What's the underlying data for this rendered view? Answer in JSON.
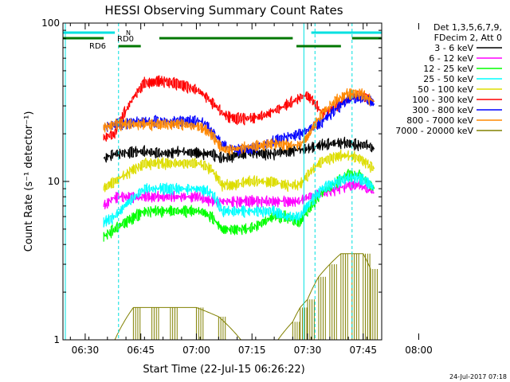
{
  "chart_data": {
    "type": "line",
    "title": "HESSI Observing Summary Count Rates",
    "xlabel": "Start Time (22-Jul-15 06:26:22)",
    "ylabel": "Count Rate (s⁻¹ detector⁻¹)",
    "yscale": "log",
    "ylim": [
      1,
      100
    ],
    "xlim_min": [
      -2,
      84
    ],
    "x_ticks": [
      "06:30",
      "06:45",
      "07:00",
      "07:15",
      "07:30",
      "07:45",
      "08:00"
    ],
    "x_tick_values": [
      4,
      19,
      34,
      49,
      64,
      79,
      94
    ],
    "y_ticks": [
      "1",
      "10",
      "100"
    ],
    "legend_header": [
      "Det 1,3,5,6,7,9,",
      "FDecim 2, Att 0"
    ],
    "legend_position": "right",
    "series": [
      {
        "name": "3 - 6 keV",
        "color": "#000000",
        "x": [
          9,
          12,
          20,
          25,
          30,
          35,
          38,
          41,
          44,
          48,
          52,
          55,
          58,
          62,
          64,
          68,
          72,
          75,
          78,
          80,
          82
        ],
        "y": [
          14,
          15,
          15.5,
          15,
          15.5,
          15,
          15,
          14,
          14.5,
          15.5,
          15,
          15,
          15.5,
          16,
          16,
          17,
          17.5,
          17.5,
          17,
          17,
          16
        ]
      },
      {
        "name": "6 - 12 keV",
        "color": "#ff00ff",
        "x": [
          9,
          12,
          20,
          25,
          30,
          35,
          38,
          41,
          44,
          48,
          52,
          55,
          58,
          62,
          64,
          68,
          72,
          75,
          78,
          80,
          82
        ],
        "y": [
          7,
          8,
          8,
          8,
          8,
          8,
          7.5,
          7.5,
          7.5,
          7.5,
          7.5,
          7.5,
          7.5,
          7.5,
          8,
          8.5,
          9,
          9.5,
          9.5,
          9,
          8.5
        ]
      },
      {
        "name": "12 - 25 keV",
        "color": "#00ff00",
        "x": [
          9,
          12,
          20,
          25,
          30,
          35,
          38,
          41,
          44,
          48,
          52,
          55,
          58,
          62,
          64,
          68,
          72,
          75,
          78,
          80,
          82
        ],
        "y": [
          4.5,
          5,
          6.5,
          6.5,
          6.5,
          6.5,
          6,
          5,
          5,
          5,
          5.5,
          6,
          6,
          5.5,
          6.5,
          8.5,
          10,
          11,
          11,
          10,
          9
        ]
      },
      {
        "name": "25 - 50 keV",
        "color": "#00ffff",
        "x": [
          9,
          12,
          20,
          25,
          30,
          35,
          38,
          41,
          44,
          48,
          52,
          55,
          58,
          62,
          64,
          68,
          72,
          75,
          78,
          80,
          82
        ],
        "y": [
          5.5,
          6,
          9,
          9,
          9,
          9,
          8.5,
          6.5,
          6.5,
          6.5,
          6.5,
          6.5,
          6,
          6,
          7,
          9,
          10,
          10.5,
          10.5,
          10,
          9
        ]
      },
      {
        "name": "50 - 100 keV",
        "color": "#dddd00",
        "x": [
          9,
          12,
          20,
          25,
          30,
          35,
          38,
          41,
          44,
          48,
          52,
          55,
          58,
          62,
          64,
          68,
          72,
          75,
          78,
          80,
          82
        ],
        "y": [
          9,
          10,
          13,
          13,
          13,
          13,
          12,
          9.5,
          9.5,
          10,
          10,
          10,
          9.5,
          9.5,
          11,
          13.5,
          14.5,
          14.5,
          14,
          13,
          12
        ]
      },
      {
        "name": "100 - 300 keV",
        "color": "#ff0000",
        "x": [
          9,
          12,
          20,
          25,
          30,
          35,
          38,
          41,
          44,
          48,
          52,
          55,
          58,
          62,
          64,
          68,
          72,
          75,
          78,
          80,
          82
        ],
        "y": [
          19,
          20,
          42,
          43,
          41,
          37,
          32,
          27,
          25,
          25,
          26,
          28,
          30,
          34,
          35,
          27,
          30,
          34,
          35,
          34,
          32
        ]
      },
      {
        "name": "300 - 800 keV",
        "color": "#0000ff",
        "x": [
          9,
          12,
          20,
          25,
          30,
          35,
          38,
          41,
          44,
          48,
          52,
          55,
          58,
          62,
          64,
          68,
          72,
          75,
          78,
          80,
          82
        ],
        "y": [
          22,
          23,
          24,
          24,
          24,
          24,
          21,
          17,
          16,
          16,
          17,
          18,
          19,
          20,
          21,
          24,
          29,
          33,
          34,
          33,
          31
        ]
      },
      {
        "name": "800 - 7000 keV",
        "color": "#ff8800",
        "x": [
          9,
          12,
          20,
          25,
          30,
          35,
          38,
          41,
          44,
          48,
          52,
          55,
          58,
          62,
          64,
          68,
          72,
          75,
          78,
          80,
          82
        ],
        "y": [
          22,
          23,
          23,
          23,
          23,
          22,
          20,
          16,
          16,
          16.5,
          17,
          17.5,
          17,
          17,
          19,
          27,
          33,
          36,
          36,
          34,
          32
        ]
      },
      {
        "name": "7000 - 20000 keV",
        "color": "#808000",
        "x": [
          12,
          17,
          22,
          27,
          34,
          40,
          46,
          52,
          56,
          60,
          62,
          64,
          67,
          70,
          73,
          76,
          79,
          81
        ],
        "y": [
          1,
          1.6,
          1.6,
          1.6,
          1.6,
          1.4,
          1,
          1,
          1,
          1.3,
          1.6,
          1.8,
          2.5,
          3,
          3.5,
          3.5,
          3.5,
          2.8
        ]
      }
    ],
    "annotations": {
      "saa_label": "N",
      "rd0_label": "RD0",
      "rd6_label": "RD6"
    },
    "timestamp": "24-Jul-2017 07:18"
  }
}
